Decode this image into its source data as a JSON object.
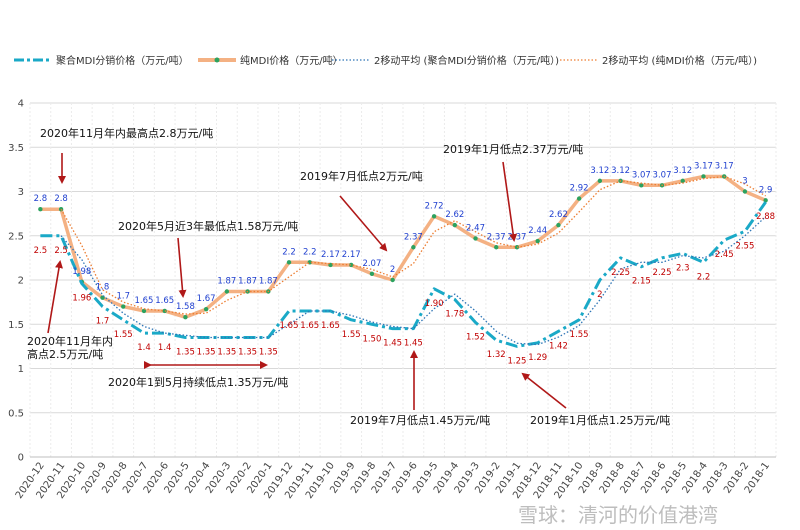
{
  "chart_data": {
    "type": "line",
    "categories": [
      "2020-12",
      "2020-11",
      "2020-10",
      "2020-9",
      "2020-8",
      "2020-7",
      "2020-6",
      "2020-5",
      "2020-4",
      "2020-3",
      "2020-2",
      "2020-1",
      "2019-12",
      "2019-11",
      "2019-10",
      "2019-9",
      "2019-8",
      "2019-7",
      "2019-6",
      "2019-5",
      "2019-4",
      "2019-3",
      "2019-2",
      "2019-1",
      "2018-12",
      "2018-11",
      "2018-10",
      "2018-9",
      "2018-8",
      "2018-7",
      "2018-6",
      "2018-5",
      "2018-4",
      "2018-3",
      "2018-2",
      "2018-1"
    ],
    "ylim": [
      0,
      4
    ],
    "yticks": [
      "0",
      "0.5",
      "1",
      "1.5",
      "2",
      "2.5",
      "3",
      "3.5",
      "4"
    ],
    "grid": true,
    "legend_position": "top",
    "series": [
      {
        "name": "聚合MDI分销价格（万元/吨）",
        "color": "#1aa9c7",
        "values": [
          2.5,
          2.5,
          1.96,
          1.7,
          1.55,
          1.4,
          1.4,
          1.35,
          1.35,
          1.35,
          1.35,
          1.35,
          1.65,
          1.65,
          1.65,
          1.55,
          1.5,
          1.45,
          1.45,
          1.9,
          1.78,
          1.52,
          1.32,
          1.25,
          1.29,
          1.42,
          1.55,
          2,
          2.25,
          2.15,
          2.25,
          2.3,
          2.2,
          2.45,
          2.55,
          2.88
        ],
        "labels": [
          "2.5",
          "2.5",
          "1.96",
          "1.7",
          "1.55",
          "1.4",
          "1.4",
          "1.35",
          "1.35",
          "1.35",
          "1.35",
          "1.35",
          "1.65",
          "1.65",
          "1.65",
          "1.55",
          "1.50",
          "1.45",
          "1.45",
          "1.90",
          "1.78",
          "1.52",
          "1.32",
          "1.25",
          "1.29",
          "1.42",
          "1.55",
          "2",
          "2.25",
          "2.15",
          "2.25",
          "2.3",
          "2.2",
          "2.45",
          "2.55",
          "2.88"
        ]
      },
      {
        "name": "纯MDI价格（万元/吨）",
        "color": "#f4b183",
        "values": [
          2.8,
          2.8,
          1.98,
          1.8,
          1.7,
          1.65,
          1.65,
          1.58,
          1.67,
          1.87,
          1.87,
          1.87,
          2.2,
          2.2,
          2.17,
          2.17,
          2.07,
          2,
          2.37,
          2.72,
          2.62,
          2.47,
          2.37,
          2.37,
          2.44,
          2.62,
          2.92,
          3.12,
          3.12,
          3.07,
          3.07,
          3.12,
          3.17,
          3.17,
          3,
          2.9
        ],
        "labels": [
          "2.8",
          "2.8",
          "1.98",
          "1.8",
          "1.7",
          "1.65",
          "1.65",
          "1.58",
          "1.67",
          "1.87",
          "1.87",
          "1.87",
          "2.2",
          "2.2",
          "2.17",
          "2.17",
          "2.07",
          "2",
          "2.37",
          "2.72",
          "2.62",
          "2.47",
          "2.37",
          "2.37",
          "2.44",
          "2.62",
          "2.92",
          "3.12",
          "3.12",
          "3.07",
          "3.07",
          "3.12",
          "3.17",
          "3.17",
          "3",
          "2.9"
        ]
      }
    ],
    "moving_averages": [
      {
        "name": "2移动平均 (聚合MDI分销价格（万元/吨）)",
        "color": "#2e75b6"
      },
      {
        "name": "2移动平均 (纯MDI价格（万元/吨）)",
        "color": "#ed7d31"
      }
    ],
    "annotations": [
      {
        "text": "2020年11月年内最高点2.8万元/吨"
      },
      {
        "text": "2020年5月近3年最低点1.58万元/吨"
      },
      {
        "text": "2019年7月低点2万元/吨"
      },
      {
        "text": "2019年1月低点2.37万元/吨"
      },
      {
        "text": "2020年11月年内"
      },
      {
        "text": "高点2.5万元/吨"
      },
      {
        "text": "2020年1到5月持续低点1.35万元/吨"
      },
      {
        "text": "2019年7月低点1.45万元/吨"
      },
      {
        "text": "2019年1月低点1.25万元/吨"
      }
    ]
  },
  "watermark": "雪球：清河的价值港湾"
}
